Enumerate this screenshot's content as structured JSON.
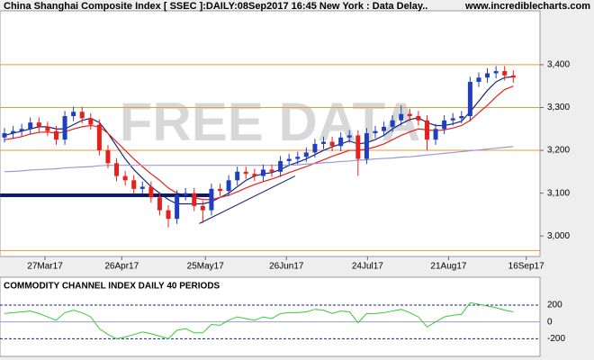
{
  "header": {
    "title": "China Shanghai Composite Index [ SSEC ]:DAILY:08Sep2017 16:45 New York : Data Delay..",
    "site": "www.incrediblecharts.com",
    "watermark": "FREE DATA"
  },
  "chart_data": [
    {
      "type": "candlestick",
      "open": [
        3230,
        3240,
        3245,
        3250,
        3265,
        3255,
        3245,
        3225,
        3280,
        3290,
        3275,
        3260,
        3200,
        3170,
        3140,
        3130,
        3110,
        3115,
        3090,
        3060,
        3040,
        3095,
        3100,
        3070,
        3060,
        3110,
        3105,
        3130,
        3150,
        3145,
        3140,
        3155,
        3150,
        3175,
        3180,
        3185,
        3195,
        3215,
        3220,
        3210,
        3230,
        3235,
        3180,
        3240,
        3245,
        3255,
        3270,
        3285,
        3280,
        3270,
        3225,
        3250,
        3270,
        3275,
        3280,
        3360,
        3370,
        3380,
        3385,
        3375
      ],
      "high": [
        3252,
        3257,
        3262,
        3277,
        3277,
        3267,
        3257,
        3292,
        3302,
        3302,
        3287,
        3272,
        3212,
        3182,
        3152,
        3142,
        3127,
        3127,
        3102,
        3072,
        3107,
        3112,
        3112,
        3082,
        3122,
        3122,
        3142,
        3162,
        3162,
        3157,
        3167,
        3167,
        3187,
        3192,
        3197,
        3207,
        3227,
        3232,
        3232,
        3242,
        3247,
        3247,
        3252,
        3257,
        3267,
        3282,
        3305,
        3297,
        3292,
        3282,
        3262,
        3282,
        3287,
        3292,
        3372,
        3382,
        3392,
        3397,
        3397,
        3387
      ],
      "low": [
        3218,
        3228,
        3233,
        3238,
        3243,
        3233,
        3213,
        3213,
        3268,
        3263,
        3248,
        3188,
        3158,
        3128,
        3118,
        3098,
        3098,
        3078,
        3048,
        3020,
        3028,
        3083,
        3058,
        3030,
        3048,
        3093,
        3093,
        3118,
        3133,
        3128,
        3128,
        3138,
        3138,
        3163,
        3168,
        3173,
        3183,
        3203,
        3198,
        3198,
        3218,
        3140,
        3168,
        3228,
        3233,
        3243,
        3258,
        3268,
        3258,
        3200,
        3213,
        3238,
        3258,
        3263,
        3268,
        3348,
        3358,
        3368,
        3363,
        3358
      ],
      "close": [
        3240,
        3245,
        3250,
        3265,
        3255,
        3245,
        3225,
        3280,
        3290,
        3275,
        3260,
        3200,
        3170,
        3140,
        3130,
        3110,
        3115,
        3090,
        3060,
        3040,
        3095,
        3100,
        3070,
        3060,
        3110,
        3105,
        3130,
        3150,
        3145,
        3140,
        3155,
        3150,
        3175,
        3180,
        3185,
        3195,
        3215,
        3220,
        3210,
        3230,
        3235,
        3180,
        3240,
        3245,
        3255,
        3270,
        3285,
        3280,
        3270,
        3225,
        3250,
        3270,
        3275,
        3280,
        3360,
        3370,
        3380,
        3385,
        3375,
        3370
      ],
      "up_color": "#1f3fbf",
      "down_color": "#e8201a",
      "series": [
        {
          "color": "#1a237e",
          "values": [
            3235,
            3240,
            3245,
            3250,
            3255,
            3255,
            3250,
            3250,
            3260,
            3270,
            3275,
            3265,
            3240,
            3210,
            3180,
            3155,
            3135,
            3115,
            3100,
            3085,
            3075,
            3075,
            3075,
            3075,
            3080,
            3090,
            3100,
            3115,
            3130,
            3140,
            3145,
            3148,
            3155,
            3165,
            3172,
            3180,
            3190,
            3200,
            3208,
            3215,
            3222,
            3215,
            3218,
            3225,
            3235,
            3250,
            3262,
            3272,
            3276,
            3265,
            3258,
            3258,
            3262,
            3268,
            3290,
            3315,
            3340,
            3360,
            3370,
            3372
          ]
        },
        {
          "color": "#e8201a",
          "values": [
            3225,
            3228,
            3232,
            3238,
            3242,
            3243,
            3240,
            3243,
            3250,
            3255,
            3258,
            3255,
            3240,
            3220,
            3200,
            3180,
            3162,
            3145,
            3130,
            3112,
            3100,
            3095,
            3090,
            3085,
            3085,
            3090,
            3095,
            3103,
            3112,
            3120,
            3127,
            3133,
            3140,
            3148,
            3155,
            3162,
            3170,
            3178,
            3186,
            3193,
            3200,
            3200,
            3203,
            3208,
            3215,
            3225,
            3235,
            3243,
            3250,
            3248,
            3246,
            3248,
            3252,
            3258,
            3270,
            3288,
            3305,
            3325,
            3342,
            3350
          ]
        },
        {
          "color": "#9a9ad8",
          "values": [
            3150,
            3151,
            3152,
            3154,
            3155,
            3156,
            3157,
            3159,
            3160,
            3161,
            3162,
            3164,
            3165,
            3165,
            3165,
            3165,
            3165,
            3165,
            3165,
            3165,
            3165,
            3165,
            3165,
            3165,
            3165,
            3165,
            3165,
            3165,
            3165,
            3165,
            3165,
            3165,
            3165,
            3165,
            3166,
            3168,
            3169,
            3171,
            3172,
            3174,
            3175,
            3177,
            3178,
            3180,
            3181,
            3182,
            3184,
            3185,
            3187,
            3189,
            3191,
            3193,
            3195,
            3197,
            3199,
            3201,
            3203,
            3205,
            3207,
            3209
          ]
        }
      ],
      "levels": [
        3400,
        3300,
        3200,
        2966
      ],
      "level_color": "#e89a3c",
      "trendlines": [
        {
          "color": "#0d1a6e",
          "width": 4,
          "x": [
            -0.5,
            24
          ],
          "y": [
            3095,
            3095
          ]
        },
        {
          "color": "#0d1a6e",
          "width": 1,
          "x": [
            22.6,
            33.7
          ],
          "y": [
            3029,
            3140
          ]
        }
      ],
      "xlim": [
        -0.52,
        62.1
      ],
      "ylim": [
        2952,
        3526
      ],
      "xticks": [
        {
          "value": 4.7,
          "label": "27Mar17"
        },
        {
          "value": 13.6,
          "label": "26Apr17"
        },
        {
          "value": 23.3,
          "label": "25May17"
        },
        {
          "value": 32.7,
          "label": "26Jun17"
        },
        {
          "value": 42.1,
          "label": "24Jul17"
        },
        {
          "value": 51.5,
          "label": "21Aug17"
        },
        {
          "value": 60.5,
          "label": "16Sep17"
        }
      ],
      "yticks": [
        {
          "value": 3000,
          "label": "3,000"
        },
        {
          "value": 3100,
          "label": "3,100"
        },
        {
          "value": 3200,
          "label": "3,200"
        },
        {
          "value": 3300,
          "label": "3,300"
        },
        {
          "value": 3400,
          "label": "3,400"
        }
      ]
    },
    {
      "type": "line",
      "title": "COMMODITY CHANNEL INDEX DAILY 40 PERIODS",
      "series": [
        {
          "color": "#33cc33",
          "values": [
            100,
            110,
            120,
            130,
            100,
            60,
            20,
            110,
            140,
            110,
            60,
            -80,
            -150,
            -200,
            -180,
            -150,
            -120,
            -140,
            -170,
            -200,
            -100,
            -80,
            -130,
            -130,
            -30,
            -40,
            20,
            60,
            40,
            20,
            60,
            40,
            100,
            110,
            110,
            120,
            150,
            140,
            100,
            130,
            120,
            -10,
            100,
            100,
            110,
            130,
            150,
            110,
            60,
            -60,
            0,
            60,
            80,
            90,
            230,
            210,
            190,
            170,
            140,
            120
          ]
        }
      ],
      "xlim": [
        -0.52,
        62.1
      ],
      "ylim": [
        -411,
        533
      ],
      "yticks": [
        -200,
        0,
        200
      ]
    }
  ]
}
